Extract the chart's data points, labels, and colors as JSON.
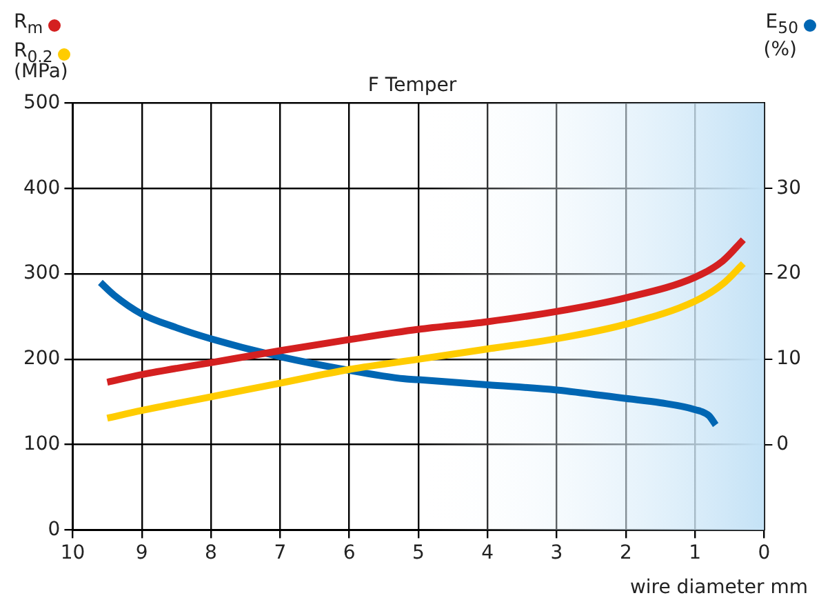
{
  "chart_data": {
    "type": "line",
    "title": "F Temper",
    "xlabel": "wire diameter mm",
    "ylabel": "(MPa)",
    "y2label": "(%)",
    "series": [
      {
        "name": "R$_{m}$",
        "color": "#d42020",
        "x": [
          9.5,
          9,
          8,
          7,
          6,
          5,
          4,
          3,
          2,
          1,
          0.6,
          0.3
        ],
        "values": [
          173,
          182,
          196,
          210,
          223,
          235,
          244,
          256,
          272,
          296,
          315,
          340
        ]
      },
      {
        "name": "R$_{0.2}$",
        "color": "#ffcc00",
        "x": [
          9.5,
          9,
          8,
          7,
          6,
          5,
          4,
          3,
          2,
          1,
          0.6,
          0.3
        ],
        "values": [
          131,
          140,
          156,
          172,
          188,
          200,
          212,
          224,
          241,
          268,
          288,
          312
        ]
      },
      {
        "name": "E$_{50}$",
        "color": "#0066b3",
        "axis": "y2",
        "x": [
          9.6,
          9.4,
          9,
          8.5,
          8,
          7,
          6,
          5.2,
          5,
          4,
          3,
          2,
          1.5,
          1,
          0.8,
          0.7
        ],
        "values": [
          19,
          17.5,
          15.3,
          13.7,
          12.4,
          10.3,
          8.7,
          7.7,
          7.6,
          7,
          6.4,
          5.4,
          4.9,
          4.1,
          3.4,
          2.3
        ]
      }
    ],
    "xlim": [
      10,
      0
    ],
    "xticks": [
      10,
      9,
      8,
      7,
      6,
      5,
      4,
      3,
      2,
      1,
      0
    ],
    "ylim": [
      0,
      500
    ],
    "yticks": [
      0,
      100,
      200,
      300,
      400,
      500
    ],
    "y2lim": [
      -10,
      40
    ],
    "y2ticks": [
      0,
      10,
      20,
      30
    ],
    "bands": [
      {
        "axis": "x",
        "from": 5,
        "to": 0,
        "color": "#c4e2f6"
      }
    ],
    "grid": true,
    "legend": "top",
    "marker": "none",
    "line_style": "solid"
  }
}
